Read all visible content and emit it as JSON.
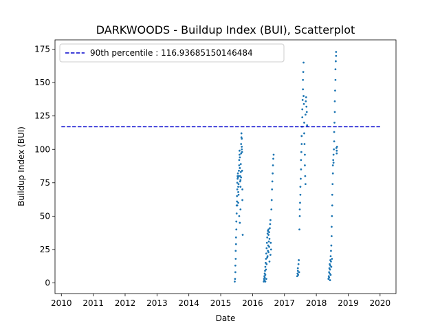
{
  "chart_data": {
    "type": "scatter",
    "title": "DARKWOODS - Buildup Index (BUI), Scatterplot",
    "xlabel": "Date",
    "ylabel": "Buildup Index (BUI)",
    "xlim": [
      2009.8,
      2020.5
    ],
    "ylim": [
      -8,
      182
    ],
    "xticks": [
      2010,
      2011,
      2012,
      2013,
      2014,
      2015,
      2016,
      2017,
      2018,
      2019,
      2020
    ],
    "xtick_labels": [
      "2010",
      "2011",
      "2012",
      "2013",
      "2014",
      "2015",
      "2016",
      "2017",
      "2018",
      "2019",
      "2020"
    ],
    "yticks": [
      0,
      25,
      50,
      75,
      100,
      125,
      150,
      175
    ],
    "ytick_labels": [
      "0",
      "25",
      "50",
      "75",
      "100",
      "125",
      "150",
      "175"
    ],
    "legend_position": "top-left",
    "reference_line": {
      "label": "90th percentile : 116.93685150146484",
      "value": 116.93685150146484,
      "x_range": [
        2010,
        2020
      ],
      "color": "#0000cc",
      "style": "dashed"
    },
    "point_color": "#1f77b4",
    "series": [
      {
        "values": [
          [
            2015.44,
            1
          ],
          [
            2015.45,
            3
          ],
          [
            2015.46,
            8
          ],
          [
            2015.46,
            13
          ],
          [
            2015.47,
            18
          ],
          [
            2015.47,
            24
          ],
          [
            2015.48,
            29
          ],
          [
            2015.48,
            34
          ],
          [
            2015.49,
            40
          ],
          [
            2015.49,
            46
          ],
          [
            2015.5,
            52
          ],
          [
            2015.5,
            58
          ],
          [
            2015.51,
            61
          ],
          [
            2015.51,
            65
          ],
          [
            2015.52,
            70
          ],
          [
            2015.52,
            75
          ],
          [
            2015.53,
            78
          ],
          [
            2015.53,
            80
          ],
          [
            2015.54,
            82
          ],
          [
            2015.54,
            79
          ],
          [
            2015.55,
            72
          ],
          [
            2015.55,
            68
          ],
          [
            2015.56,
            66
          ],
          [
            2015.56,
            74
          ],
          [
            2015.57,
            80
          ],
          [
            2015.57,
            84
          ],
          [
            2015.58,
            88
          ],
          [
            2015.58,
            92
          ],
          [
            2015.59,
            96
          ],
          [
            2015.59,
            99
          ],
          [
            2015.6,
            94
          ],
          [
            2015.6,
            86
          ],
          [
            2015.61,
            80
          ],
          [
            2015.61,
            76
          ],
          [
            2015.62,
            72
          ],
          [
            2015.62,
            77
          ],
          [
            2015.63,
            83
          ],
          [
            2015.63,
            89
          ],
          [
            2015.64,
            97
          ],
          [
            2015.64,
            104
          ],
          [
            2015.65,
            109
          ],
          [
            2015.65,
            112
          ],
          [
            2015.66,
            108
          ],
          [
            2015.66,
            102
          ],
          [
            2015.67,
            98
          ],
          [
            2015.67,
            84
          ],
          [
            2015.68,
            70
          ],
          [
            2015.68,
            62
          ],
          [
            2015.69,
            36
          ],
          [
            2015.52,
            58
          ],
          [
            2015.55,
            60
          ],
          [
            2015.58,
            50
          ],
          [
            2015.6,
            45
          ],
          [
            2015.62,
            55
          ],
          [
            2015.64,
            79
          ],
          [
            2015.66,
            100
          ],
          [
            2016.35,
            1
          ],
          [
            2016.36,
            3
          ],
          [
            2016.37,
            5
          ],
          [
            2016.37,
            2
          ],
          [
            2016.38,
            7
          ],
          [
            2016.38,
            4
          ],
          [
            2016.39,
            9
          ],
          [
            2016.4,
            12
          ],
          [
            2016.4,
            6
          ],
          [
            2016.41,
            15
          ],
          [
            2016.42,
            10
          ],
          [
            2016.42,
            18
          ],
          [
            2016.43,
            22
          ],
          [
            2016.44,
            14
          ],
          [
            2016.44,
            26
          ],
          [
            2016.45,
            30
          ],
          [
            2016.46,
            19
          ],
          [
            2016.46,
            34
          ],
          [
            2016.47,
            37
          ],
          [
            2016.48,
            24
          ],
          [
            2016.48,
            39
          ],
          [
            2016.49,
            28
          ],
          [
            2016.5,
            36
          ],
          [
            2016.5,
            40
          ],
          [
            2016.51,
            31
          ],
          [
            2016.52,
            38
          ],
          [
            2016.52,
            27
          ],
          [
            2016.53,
            33
          ],
          [
            2016.54,
            41
          ],
          [
            2016.55,
            44
          ],
          [
            2016.56,
            47
          ],
          [
            2016.57,
            30
          ],
          [
            2016.58,
            25
          ],
          [
            2016.59,
            55
          ],
          [
            2016.6,
            62
          ],
          [
            2016.61,
            70
          ],
          [
            2016.62,
            76
          ],
          [
            2016.63,
            82
          ],
          [
            2016.64,
            88
          ],
          [
            2016.65,
            93
          ],
          [
            2016.66,
            96
          ],
          [
            2016.4,
            1
          ],
          [
            2016.43,
            3
          ],
          [
            2016.47,
            20
          ],
          [
            2016.5,
            23
          ],
          [
            2016.53,
            16
          ],
          [
            2016.56,
            21
          ],
          [
            2017.4,
            5
          ],
          [
            2017.41,
            7
          ],
          [
            2017.42,
            9
          ],
          [
            2017.42,
            11
          ],
          [
            2017.43,
            6
          ],
          [
            2017.44,
            14
          ],
          [
            2017.45,
            17
          ],
          [
            2017.46,
            8
          ],
          [
            2017.47,
            40
          ],
          [
            2017.48,
            50
          ],
          [
            2017.48,
            55
          ],
          [
            2017.49,
            60
          ],
          [
            2017.5,
            66
          ],
          [
            2017.5,
            72
          ],
          [
            2017.51,
            78
          ],
          [
            2017.52,
            85
          ],
          [
            2017.52,
            92
          ],
          [
            2017.53,
            98
          ],
          [
            2017.54,
            104
          ],
          [
            2017.54,
            110
          ],
          [
            2017.55,
            117
          ],
          [
            2017.56,
            124
          ],
          [
            2017.56,
            130
          ],
          [
            2017.57,
            137
          ],
          [
            2017.58,
            145
          ],
          [
            2017.58,
            152
          ],
          [
            2017.59,
            158
          ],
          [
            2017.6,
            165
          ],
          [
            2017.6,
            140
          ],
          [
            2017.61,
            134
          ],
          [
            2017.62,
            120
          ],
          [
            2017.62,
            112
          ],
          [
            2017.63,
            104
          ],
          [
            2017.64,
            96
          ],
          [
            2017.64,
            88
          ],
          [
            2017.65,
            80
          ],
          [
            2017.66,
            74
          ],
          [
            2017.66,
            126
          ],
          [
            2017.67,
            136
          ],
          [
            2017.68,
            139
          ],
          [
            2017.69,
            132
          ],
          [
            2017.7,
            128
          ],
          [
            2017.71,
            118
          ],
          [
            2018.38,
            3
          ],
          [
            2018.39,
            5
          ],
          [
            2018.4,
            8
          ],
          [
            2018.4,
            4
          ],
          [
            2018.41,
            11
          ],
          [
            2018.42,
            7
          ],
          [
            2018.42,
            14
          ],
          [
            2018.43,
            10
          ],
          [
            2018.44,
            17
          ],
          [
            2018.44,
            13
          ],
          [
            2018.45,
            20
          ],
          [
            2018.46,
            16
          ],
          [
            2018.46,
            24
          ],
          [
            2018.47,
            28
          ],
          [
            2018.48,
            35
          ],
          [
            2018.48,
            42
          ],
          [
            2018.49,
            50
          ],
          [
            2018.5,
            58
          ],
          [
            2018.5,
            66
          ],
          [
            2018.51,
            74
          ],
          [
            2018.52,
            82
          ],
          [
            2018.52,
            88
          ],
          [
            2018.53,
            92
          ],
          [
            2018.54,
            96
          ],
          [
            2018.54,
            90
          ],
          [
            2018.55,
            100
          ],
          [
            2018.56,
            106
          ],
          [
            2018.56,
            113
          ],
          [
            2018.57,
            120
          ],
          [
            2018.58,
            128
          ],
          [
            2018.58,
            136
          ],
          [
            2018.59,
            144
          ],
          [
            2018.6,
            152
          ],
          [
            2018.6,
            160
          ],
          [
            2018.61,
            166
          ],
          [
            2018.62,
            170
          ],
          [
            2018.62,
            173
          ],
          [
            2018.63,
            101
          ],
          [
            2018.64,
            99
          ],
          [
            2018.64,
            97
          ],
          [
            2018.65,
            102
          ],
          [
            2018.43,
            2
          ],
          [
            2018.45,
            6
          ],
          [
            2018.47,
            12
          ],
          [
            2018.49,
            18
          ]
        ]
      }
    ]
  }
}
